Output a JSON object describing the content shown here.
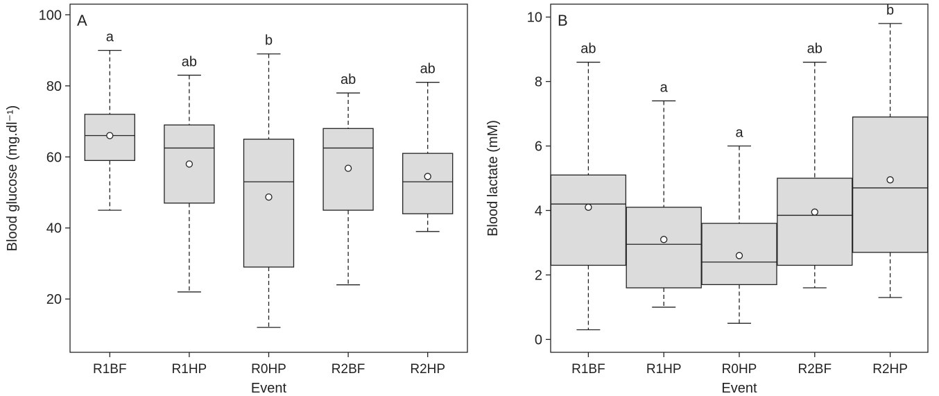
{
  "chart_data": [
    {
      "type": "box",
      "panel_label": "A",
      "xlabel": "Event",
      "ylabel": "Blood glucose (mg.dl⁻¹)",
      "ylim": [
        5,
        103
      ],
      "yticks": [
        20,
        40,
        60,
        80,
        100
      ],
      "categories": [
        "R1BF",
        "R1HP",
        "R0HP",
        "R2BF",
        "R2HP"
      ],
      "boxes": [
        {
          "min": 45,
          "q1": 59,
          "median": 66,
          "q3": 72,
          "max": 90,
          "mean": 66,
          "letter": "a"
        },
        {
          "min": 22,
          "q1": 47,
          "median": 62.5,
          "q3": 69,
          "max": 83,
          "mean": 58,
          "letter": "ab"
        },
        {
          "min": 12,
          "q1": 29,
          "median": 53,
          "q3": 65,
          "max": 89,
          "mean": 48.7,
          "letter": "b"
        },
        {
          "min": 24,
          "q1": 45,
          "median": 62.5,
          "q3": 68,
          "max": 78,
          "mean": 56.8,
          "letter": "ab"
        },
        {
          "min": 39,
          "q1": 44,
          "median": 53,
          "q3": 61,
          "max": 81,
          "mean": 54.5,
          "letter": "ab"
        }
      ]
    },
    {
      "type": "box",
      "panel_label": "B",
      "xlabel": "Event",
      "ylabel": "Blood lactate (mM)",
      "ylim": [
        -0.4,
        10.4
      ],
      "yticks": [
        0,
        2,
        4,
        6,
        8,
        10
      ],
      "categories": [
        "R1BF",
        "R1HP",
        "R0HP",
        "R2BF",
        "R2HP"
      ],
      "boxes": [
        {
          "min": 0.3,
          "q1": 2.3,
          "median": 4.2,
          "q3": 5.1,
          "max": 8.6,
          "mean": 4.1,
          "letter": "ab"
        },
        {
          "min": 1.0,
          "q1": 1.6,
          "median": 2.95,
          "q3": 4.1,
          "max": 7.4,
          "mean": 3.1,
          "letter": "a"
        },
        {
          "min": 0.5,
          "q1": 1.7,
          "median": 2.4,
          "q3": 3.6,
          "max": 6.0,
          "mean": 2.6,
          "letter": "a"
        },
        {
          "min": 1.6,
          "q1": 2.3,
          "median": 3.85,
          "q3": 5.0,
          "max": 8.6,
          "mean": 3.95,
          "letter": "ab"
        },
        {
          "min": 1.3,
          "q1": 2.7,
          "median": 4.7,
          "q3": 6.9,
          "max": 9.8,
          "mean": 4.95,
          "letter": "b"
        }
      ]
    }
  ]
}
